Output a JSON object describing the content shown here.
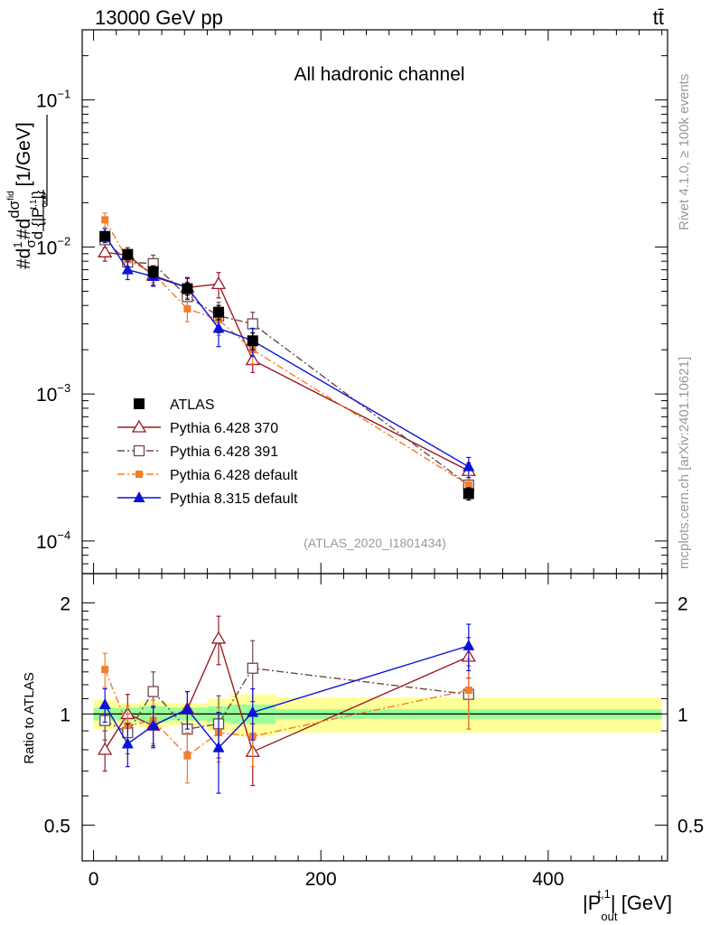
{
  "header": {
    "energy_label": "13000 GeV pp",
    "process_label": "tt̄",
    "channel_label": "All hadronic channel",
    "analysis_id": "(ATLAS_2020_I1801434)",
    "side_label_top": "Rivet 4.1.0, ≥ 100k events",
    "side_label_bottom": "mcplots.cern.ch [arXiv:2401.10621]"
  },
  "colors": {
    "atlas": "#000000",
    "py370": "#9a1a24",
    "py391": "#6e4a4a",
    "py6def": "#f47e2a",
    "py8def": "#0a14d8",
    "band_outer": "#ffff99",
    "band_inner": "#99ff99"
  },
  "chart_data": [
    {
      "type": "scatter",
      "panel": "main",
      "xlabel": "|P_out^t,1| [GeV]",
      "ylabel": "1/σ dσ/d{|P_out^t,1|} [1/GeV]",
      "ylabel_parts": {
        "lhs": "#d",
        "frac_num": "1",
        "frac_den": "σ",
        "mid": "#d",
        "dnum": "dσ",
        "dnum_sup": "fid",
        "dden": "d {|P",
        "dden_sub": "out",
        "dden_sup": "t,1",
        "dden_end": "|}",
        "unit": "[1/GeV]"
      },
      "yscale": "log",
      "xlim": [
        -10,
        505
      ],
      "ylim": [
        6e-05,
        0.3
      ],
      "y_ticks": [
        {
          "value": 0.0001,
          "base": "10",
          "exp": "−4"
        },
        {
          "value": 0.001,
          "base": "10",
          "exp": "−3"
        },
        {
          "value": 0.01,
          "base": "10",
          "exp": "−2"
        },
        {
          "value": 0.1,
          "base": "10",
          "exp": "−1"
        }
      ],
      "legend_position": "bottom-left",
      "series": [
        {
          "name": "ATLAS",
          "key": "atlas",
          "marker": "square-filled",
          "line": "none",
          "x": [
            10,
            30,
            52.5,
            82.5,
            110,
            140,
            330
          ],
          "y": [
            0.0118,
            0.0089,
            0.0068,
            0.0052,
            0.0036,
            0.0023,
            0.00021
          ],
          "yerr": [
            0.0008,
            0.0007,
            0.0006,
            0.0005,
            0.0004,
            0.0003,
            2e-05
          ]
        },
        {
          "name": "Pythia 6.428 370",
          "key": "py370",
          "marker": "triangle-open",
          "line": "solid",
          "x": [
            10,
            30,
            52.5,
            82.5,
            110,
            140,
            330
          ],
          "y": [
            0.0092,
            0.0088,
            0.0064,
            0.0053,
            0.0056,
            0.0017,
            0.0003
          ],
          "yerr": [
            0.0012,
            0.0011,
            0.0009,
            0.0008,
            0.0011,
            0.0003,
            4e-05
          ]
        },
        {
          "name": "Pythia 6.428 391",
          "key": "py391",
          "marker": "square-open",
          "line": "dashdot",
          "x": [
            10,
            30,
            52.5,
            82.5,
            110,
            140,
            330
          ],
          "y": [
            0.0112,
            0.0079,
            0.0077,
            0.0046,
            0.0034,
            0.003,
            0.00024
          ],
          "yerr": [
            0.0013,
            0.0011,
            0.0011,
            0.0008,
            0.0008,
            0.0006,
            4e-05
          ]
        },
        {
          "name": "Pythia 6.428 default",
          "key": "py6def",
          "marker": "square-filled-small",
          "line": "dashdot",
          "x": [
            10,
            30,
            52.5,
            82.5,
            110,
            140,
            330
          ],
          "y": [
            0.0153,
            0.0082,
            0.0066,
            0.0038,
            0.0032,
            0.002,
            0.00024
          ],
          "yerr": [
            0.0017,
            0.0011,
            0.0009,
            0.0007,
            0.0007,
            0.0004,
            4e-05
          ]
        },
        {
          "name": "Pythia 8.315 default",
          "key": "py8def",
          "marker": "triangle-filled",
          "line": "solid",
          "x": [
            10,
            30,
            52.5,
            82.5,
            110,
            140,
            330
          ],
          "y": [
            0.012,
            0.007,
            0.0063,
            0.0053,
            0.0028,
            0.0023,
            0.00032
          ],
          "yerr": [
            0.0013,
            0.001,
            0.0009,
            0.0009,
            0.0007,
            0.0005,
            5e-05
          ]
        }
      ]
    },
    {
      "type": "scatter",
      "panel": "ratio",
      "ylabel": "Ratio to ATLAS",
      "xlabel": "|P_out^t,1| [GeV]",
      "xlabel_parts": {
        "pre": "|P",
        "sub": "out",
        "sup": "t,1",
        "post": "| [GeV]"
      },
      "yscale": "log",
      "xlim": [
        -10,
        505
      ],
      "ylim": [
        0.4,
        2.4
      ],
      "y_ticks": [
        {
          "value": 0.5,
          "label": "0.5"
        },
        {
          "value": 1,
          "label": "1"
        },
        {
          "value": 2,
          "label": "2"
        }
      ],
      "x_ticks": [
        {
          "value": 0,
          "label": "0"
        },
        {
          "value": 200,
          "label": "200"
        },
        {
          "value": 400,
          "label": "400"
        }
      ],
      "reference": {
        "bins": [
          [
            0,
            20
          ],
          [
            20,
            40
          ],
          [
            40,
            65
          ],
          [
            65,
            100
          ],
          [
            100,
            120
          ],
          [
            120,
            160
          ],
          [
            160,
            500
          ]
        ],
        "inner": [
          0.04,
          0.04,
          0.05,
          0.04,
          0.05,
          0.06,
          0.03
        ],
        "outer": [
          0.09,
          0.07,
          0.08,
          0.07,
          0.1,
          0.13,
          0.11
        ]
      },
      "series": [
        {
          "key": "py370",
          "x": [
            10,
            30,
            52.5,
            82.5,
            110,
            140,
            330
          ],
          "y": [
            0.8,
            1.0,
            0.93,
            1.03,
            1.6,
            0.79,
            1.43
          ],
          "yerr": [
            0.1,
            0.13,
            0.11,
            0.12,
            0.24,
            0.15,
            0.18
          ]
        },
        {
          "key": "py391",
          "x": [
            10,
            30,
            52.5,
            82.5,
            110,
            140,
            330
          ],
          "y": [
            0.96,
            0.89,
            1.15,
            0.91,
            0.94,
            1.33,
            1.13
          ],
          "yerr": [
            0.11,
            0.11,
            0.15,
            0.12,
            0.18,
            0.25,
            0.22
          ]
        },
        {
          "key": "py6def",
          "x": [
            10,
            30,
            52.5,
            82.5,
            110,
            140,
            330
          ],
          "y": [
            1.32,
            0.93,
            0.96,
            0.77,
            0.89,
            0.87,
            1.16
          ],
          "yerr": [
            0.14,
            0.12,
            0.13,
            0.12,
            0.15,
            0.15,
            0.25
          ]
        },
        {
          "key": "py8def",
          "x": [
            10,
            30,
            52.5,
            82.5,
            110,
            140,
            330
          ],
          "y": [
            1.06,
            0.83,
            0.93,
            1.03,
            0.81,
            1.01,
            1.53
          ],
          "yerr": [
            0.11,
            0.11,
            0.12,
            0.12,
            0.2,
            0.16,
            0.22
          ]
        }
      ]
    }
  ]
}
